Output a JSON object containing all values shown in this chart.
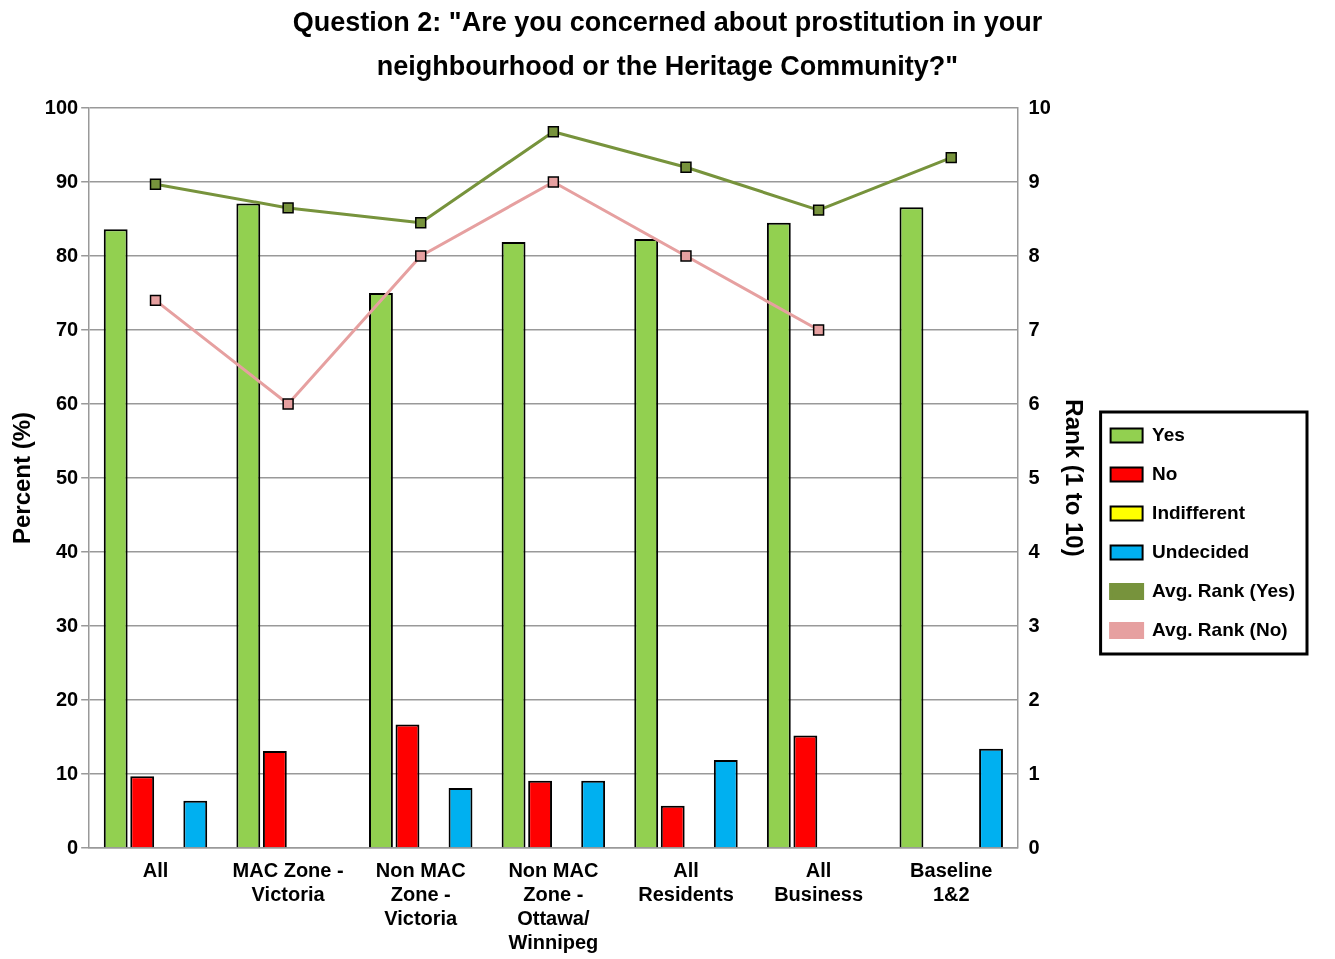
{
  "chart_data": {
    "type": "bar",
    "title": "Question 2: \"Are you concerned about prostitution in your neighbourhood or the Heritage Community?\"",
    "ylabel": "Percent (%)",
    "y2label": "Rank (1 to 10)",
    "categories": [
      "All",
      "MAC Zone - Victoria",
      "Non MAC Zone - Victoria",
      "Non MAC Zone - Ottawa/ Winnipeg",
      "All Residents",
      "All Business",
      "Baseline 1&2"
    ],
    "series": [
      {
        "name": "Yes",
        "color": "#92d050",
        "values": [
          83.6,
          87.1,
          75.0,
          81.9,
          82.3,
          84.5,
          86.6
        ]
      },
      {
        "name": "No",
        "color": "#ff0000",
        "values": [
          9.7,
          13.1,
          16.7,
          9.1,
          5.7,
          15.2,
          null
        ]
      },
      {
        "name": "Indifferent",
        "color": "#ffff00",
        "values": [
          null,
          null,
          null,
          null,
          null,
          null,
          null
        ]
      },
      {
        "name": "Undecided",
        "color": "#00b0f0",
        "values": [
          6.4,
          null,
          8.1,
          9.1,
          11.9,
          null,
          13.4
        ]
      },
      {
        "name": "Avg. Rank (Yes)",
        "type": "line",
        "axis": "y2",
        "color": "#77933c",
        "values": [
          8.97,
          8.65,
          8.45,
          9.68,
          9.2,
          8.62,
          9.33
        ]
      },
      {
        "name": "Avg. Rank (No)",
        "type": "line",
        "axis": "y2",
        "color": "#e6a0a0",
        "values": [
          7.4,
          6.0,
          8.0,
          9.0,
          8.0,
          7.0,
          null
        ]
      }
    ],
    "ylim": [
      0,
      100
    ],
    "yticks": [
      0,
      10,
      20,
      30,
      40,
      50,
      60,
      70,
      80,
      90,
      100
    ],
    "y2lim": [
      0,
      10
    ],
    "y2ticks": [
      0,
      1,
      2,
      3,
      4,
      5,
      6,
      7,
      8,
      9,
      10
    ],
    "grid": "y",
    "legend": "right",
    "marker": "square"
  }
}
